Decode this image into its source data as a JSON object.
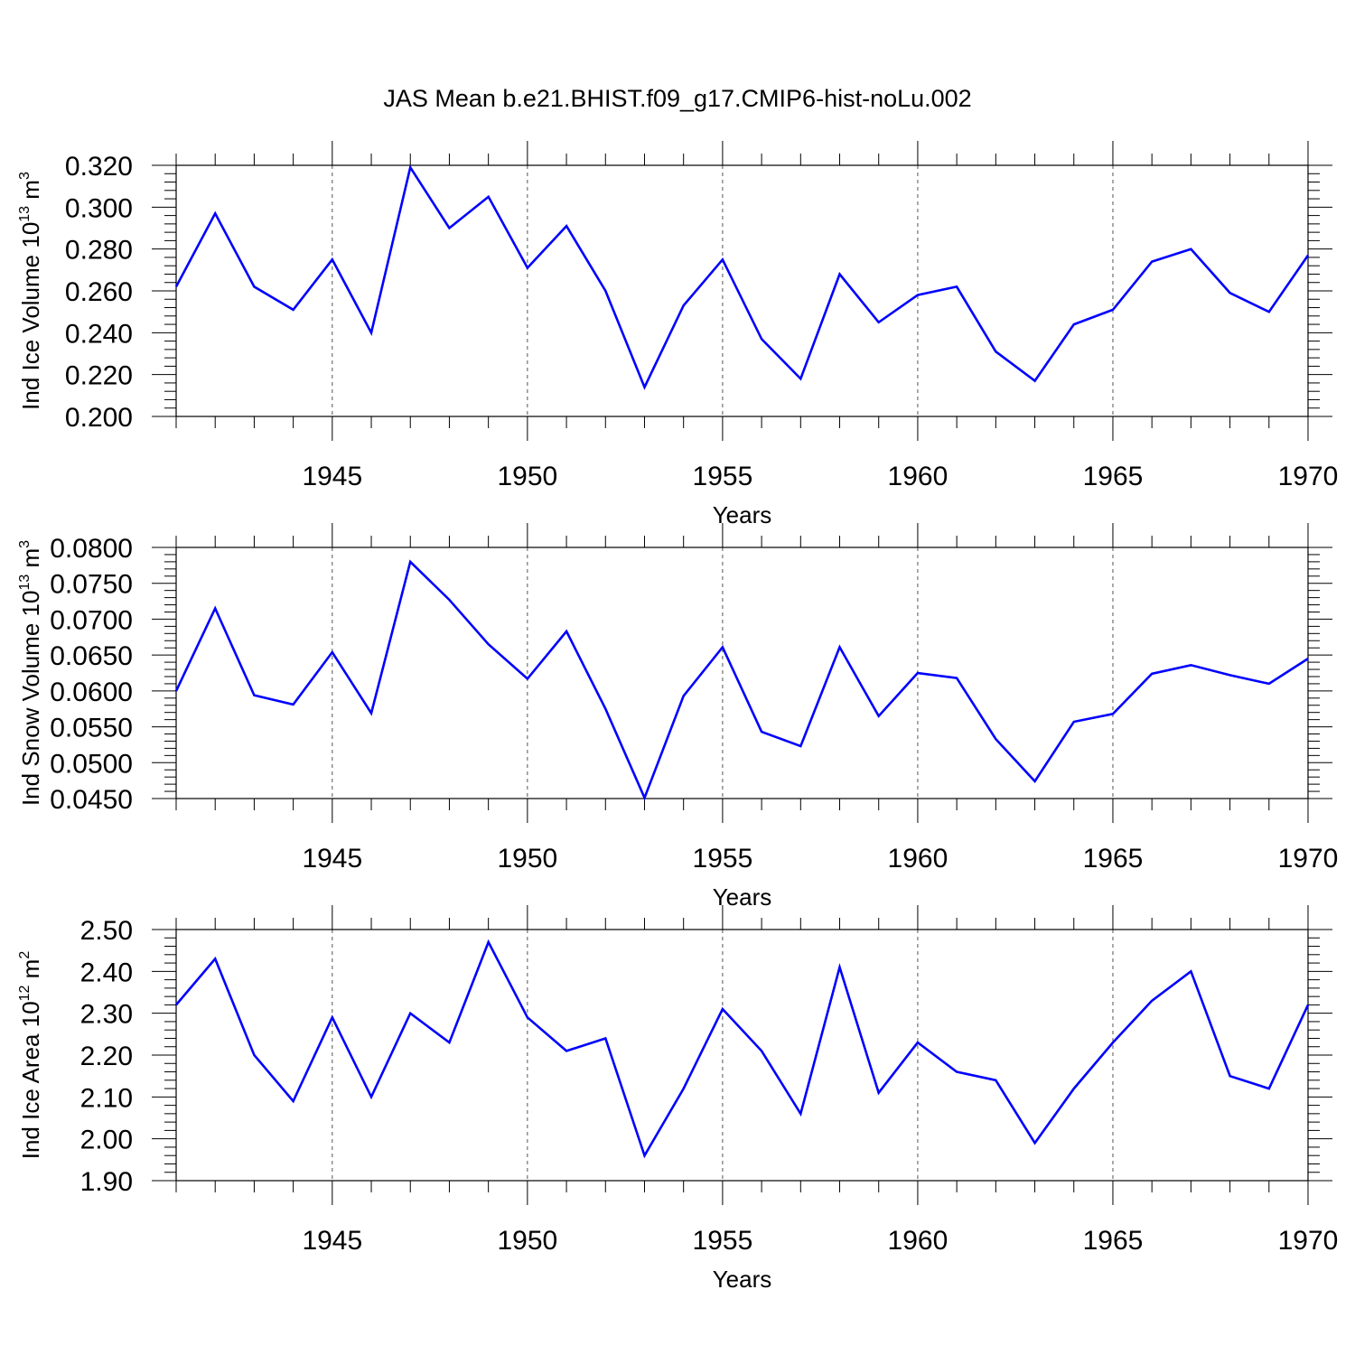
{
  "title": "JAS Mean b.e21.BHIST.f09_g17.CMIP6-hist-noLu.002",
  "colors": {
    "line": "#0000ff",
    "axes": "#000000",
    "grid": "#555555"
  },
  "chart_data": [
    {
      "type": "line",
      "title": "JAS Mean b.e21.BHIST.f09_g17.CMIP6-hist-noLu.002",
      "xlabel": "Years",
      "ylabel": {
        "main": "Ind Ice Volume 10",
        "exp": "13",
        "unit": " m",
        "unit_exp": "3"
      },
      "xlim": [
        1941,
        1970
      ],
      "ylim": [
        0.2,
        0.32
      ],
      "x_ticks": [
        "1945",
        "1950",
        "1955",
        "1960",
        "1965",
        "1970"
      ],
      "x_tick_values": [
        1945,
        1950,
        1955,
        1960,
        1965,
        1970
      ],
      "y_ticks": [
        "0.200",
        "0.220",
        "0.240",
        "0.260",
        "0.280",
        "0.300",
        "0.320"
      ],
      "y_tick_values": [
        0.2,
        0.22,
        0.24,
        0.26,
        0.28,
        0.3,
        0.32
      ],
      "grid": "dashed vertical at major x ticks",
      "x": [
        1941,
        1942,
        1943,
        1944,
        1945,
        1946,
        1947,
        1948,
        1949,
        1950,
        1951,
        1952,
        1953,
        1954,
        1955,
        1956,
        1957,
        1958,
        1959,
        1960,
        1961,
        1962,
        1963,
        1964,
        1965,
        1966,
        1967,
        1968,
        1969,
        1970
      ],
      "values": [
        0.262,
        0.297,
        0.262,
        0.251,
        0.275,
        0.24,
        0.319,
        0.29,
        0.305,
        0.271,
        0.291,
        0.26,
        0.214,
        0.253,
        0.275,
        0.237,
        0.218,
        0.268,
        0.245,
        0.258,
        0.262,
        0.231,
        0.217,
        0.244,
        0.251,
        0.274,
        0.28,
        0.259,
        0.25,
        0.277
      ]
    },
    {
      "type": "line",
      "xlabel": "Years",
      "ylabel": {
        "main": "Ind Snow Volume 10",
        "exp": "13",
        "unit": " m",
        "unit_exp": "3"
      },
      "xlim": [
        1941,
        1970
      ],
      "ylim": [
        0.045,
        0.08
      ],
      "x_ticks": [
        "1945",
        "1950",
        "1955",
        "1960",
        "1965",
        "1970"
      ],
      "x_tick_values": [
        1945,
        1950,
        1955,
        1960,
        1965,
        1970
      ],
      "y_ticks": [
        "0.0450",
        "0.0500",
        "0.0550",
        "0.0600",
        "0.0650",
        "0.0700",
        "0.0750",
        "0.0800"
      ],
      "y_tick_values": [
        0.045,
        0.05,
        0.055,
        0.06,
        0.065,
        0.07,
        0.075,
        0.08
      ],
      "grid": "dashed vertical at major x ticks",
      "x": [
        1941,
        1942,
        1943,
        1944,
        1945,
        1946,
        1947,
        1948,
        1949,
        1950,
        1951,
        1952,
        1953,
        1954,
        1955,
        1956,
        1957,
        1958,
        1959,
        1960,
        1961,
        1962,
        1963,
        1964,
        1965,
        1966,
        1967,
        1968,
        1969,
        1970
      ],
      "values": [
        0.06,
        0.0715,
        0.0594,
        0.0581,
        0.0654,
        0.0569,
        0.078,
        0.0727,
        0.0665,
        0.0617,
        0.0683,
        0.0575,
        0.0451,
        0.0593,
        0.0661,
        0.0543,
        0.0523,
        0.0661,
        0.0565,
        0.0625,
        0.0618,
        0.0533,
        0.0474,
        0.0557,
        0.0568,
        0.0624,
        0.0636,
        0.0622,
        0.061,
        0.0645
      ]
    },
    {
      "type": "line",
      "xlabel": "Years",
      "ylabel": {
        "main": "Ind Ice Area 10",
        "exp": "12",
        "unit": " m",
        "unit_exp": "2"
      },
      "xlim": [
        1941,
        1970
      ],
      "ylim": [
        1.9,
        2.5
      ],
      "x_ticks": [
        "1945",
        "1950",
        "1955",
        "1960",
        "1965",
        "1970"
      ],
      "x_tick_values": [
        1945,
        1950,
        1955,
        1960,
        1965,
        1970
      ],
      "y_ticks": [
        "1.90",
        "2.00",
        "2.10",
        "2.20",
        "2.30",
        "2.40",
        "2.50"
      ],
      "y_tick_values": [
        1.9,
        2.0,
        2.1,
        2.2,
        2.3,
        2.4,
        2.5
      ],
      "grid": "dashed vertical at major x ticks",
      "x": [
        1941,
        1942,
        1943,
        1944,
        1945,
        1946,
        1947,
        1948,
        1949,
        1950,
        1951,
        1952,
        1953,
        1954,
        1955,
        1956,
        1957,
        1958,
        1959,
        1960,
        1961,
        1962,
        1963,
        1964,
        1965,
        1966,
        1967,
        1968,
        1969,
        1970
      ],
      "values": [
        2.32,
        2.43,
        2.2,
        2.09,
        2.29,
        2.1,
        2.3,
        2.23,
        2.47,
        2.29,
        2.21,
        2.24,
        1.96,
        2.12,
        2.31,
        2.21,
        2.06,
        2.41,
        2.11,
        2.23,
        2.16,
        2.14,
        1.99,
        2.12,
        2.23,
        2.33,
        2.4,
        2.15,
        2.12,
        2.32
      ]
    }
  ]
}
